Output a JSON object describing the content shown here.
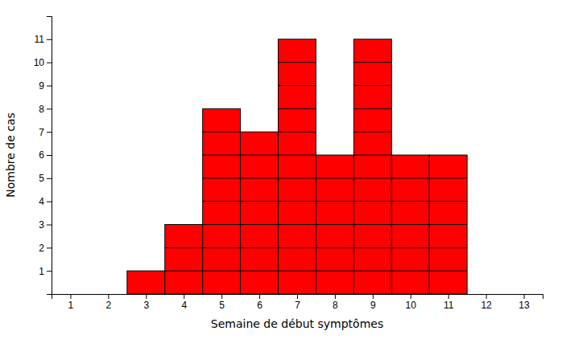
{
  "chart_data": {
    "type": "bar",
    "x": [
      1,
      2,
      3,
      4,
      5,
      6,
      7,
      8,
      9,
      10,
      11,
      12,
      13
    ],
    "values": [
      0,
      0,
      1,
      3,
      8,
      7,
      11,
      6,
      11,
      6,
      6,
      0,
      0
    ],
    "color": "#ff0000",
    "xlabel": "Semaine de début symptômes",
    "ylabel": "Nombre de cas",
    "xlim": [
      0.5,
      13.5
    ],
    "ylim": [
      0,
      12
    ],
    "xticks": [
      1,
      2,
      3,
      4,
      5,
      6,
      7,
      8,
      9,
      10,
      11,
      12,
      13
    ],
    "yticks": [
      1,
      2,
      3,
      4,
      5,
      6,
      7,
      8,
      9,
      10,
      11
    ],
    "grid": false
  }
}
